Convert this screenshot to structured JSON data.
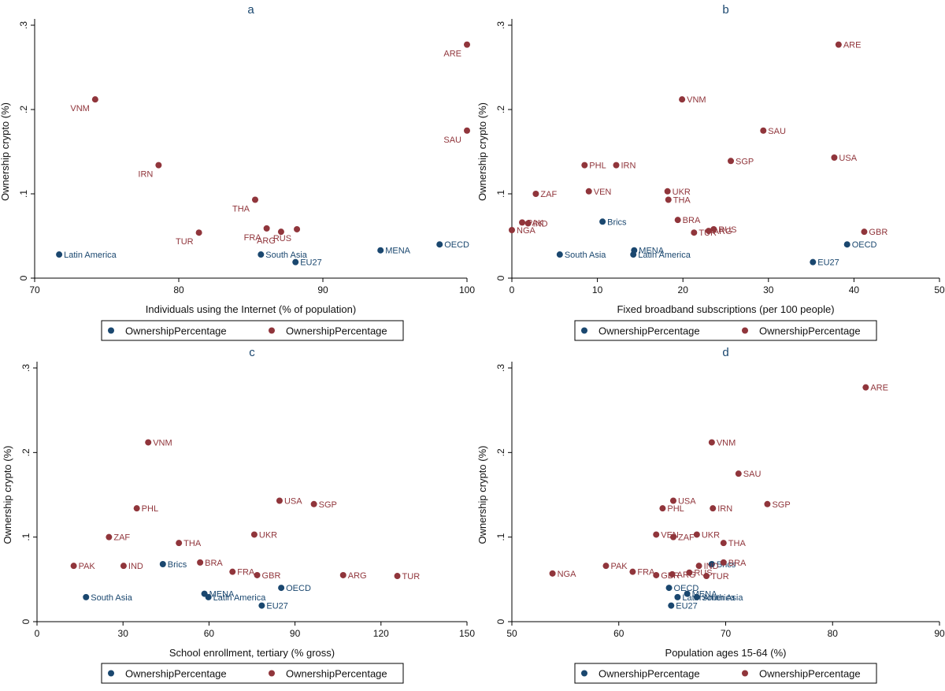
{
  "colors": {
    "navy": "#1a476f",
    "maroon": "#90353b",
    "frame": "#000000",
    "legend_border": "#000000"
  },
  "chart_data": [
    {
      "type": "scatter",
      "title": "a",
      "xlabel": "Individuals using the Internet (% of population)",
      "ylabel": "Ownership crypto (%)",
      "xlim": [
        70,
        100
      ],
      "ylim": [
        0,
        0.3
      ],
      "xticks": [
        70,
        80,
        90,
        100
      ],
      "xtick_labels": [
        "70",
        "80",
        "90",
        "100"
      ],
      "yticks": [
        0,
        0.1,
        0.2,
        0.3
      ],
      "ytick_labels": [
        "0",
        ".1",
        ".2",
        ".3"
      ],
      "legend": [
        "OwnershipPercentage",
        "OwnershipPercentage"
      ],
      "series": [
        {
          "name": "OwnershipPercentage",
          "color": "navy",
          "points": [
            {
              "label": "Latin America",
              "x": 71.7,
              "y": 0.028,
              "pos": "right"
            },
            {
              "label": "South Asia",
              "x": 85.7,
              "y": 0.028,
              "pos": "right"
            },
            {
              "label": "EU27",
              "x": 88.1,
              "y": 0.019,
              "pos": "right"
            },
            {
              "label": "MENA",
              "x": 94.0,
              "y": 0.033,
              "pos": "right"
            },
            {
              "label": "OECD",
              "x": 98.1,
              "y": 0.04,
              "pos": "right"
            }
          ]
        },
        {
          "name": "OwnershipPercentage",
          "color": "maroon",
          "points": [
            {
              "label": "VNM",
              "x": 74.2,
              "y": 0.212,
              "pos": "below-left"
            },
            {
              "label": "IRN",
              "x": 78.6,
              "y": 0.134,
              "pos": "below-left"
            },
            {
              "label": "TUR",
              "x": 81.4,
              "y": 0.054,
              "pos": "below-left"
            },
            {
              "label": "THA",
              "x": 85.3,
              "y": 0.093,
              "pos": "below-left"
            },
            {
              "label": "FRA",
              "x": 86.1,
              "y": 0.059,
              "pos": "below-left"
            },
            {
              "label": "ARG",
              "x": 87.1,
              "y": 0.055,
              "pos": "below-left"
            },
            {
              "label": "RUS",
              "x": 88.2,
              "y": 0.058,
              "pos": "below-left"
            },
            {
              "label": "ARE",
              "x": 100.0,
              "y": 0.277,
              "pos": "below-left"
            },
            {
              "label": "SAU",
              "x": 100.0,
              "y": 0.175,
              "pos": "below-left"
            }
          ]
        }
      ]
    },
    {
      "type": "scatter",
      "title": "b",
      "xlabel": "Fixed broadband subscriptions (per 100 people)",
      "ylabel": "Ownership crypto (%)",
      "xlim": [
        0,
        50
      ],
      "ylim": [
        0,
        0.3
      ],
      "xticks": [
        0,
        10,
        20,
        30,
        40,
        50
      ],
      "xtick_labels": [
        "0",
        "10",
        "20",
        "30",
        "40",
        "50"
      ],
      "yticks": [
        0,
        0.1,
        0.2,
        0.3
      ],
      "ytick_labels": [
        "0",
        ".1",
        ".2",
        ".3"
      ],
      "legend": [
        "OwnershipPercentage",
        "OwnershipPercentage"
      ],
      "series": [
        {
          "name": "OwnershipPercentage",
          "color": "navy",
          "points": [
            {
              "label": "South Asia",
              "x": 5.6,
              "y": 0.028,
              "pos": "right"
            },
            {
              "label": "Brics",
              "x": 10.6,
              "y": 0.067,
              "pos": "right"
            },
            {
              "label": "MENA",
              "x": 14.3,
              "y": 0.033,
              "pos": "right"
            },
            {
              "label": "Latin America",
              "x": 14.2,
              "y": 0.028,
              "pos": "right"
            },
            {
              "label": "EU27",
              "x": 35.2,
              "y": 0.019,
              "pos": "right"
            },
            {
              "label": "OECD",
              "x": 39.2,
              "y": 0.04,
              "pos": "right"
            }
          ]
        },
        {
          "name": "OwnershipPercentage",
          "color": "maroon",
          "points": [
            {
              "label": "NGA",
              "x": 0.0,
              "y": 0.057,
              "pos": "right"
            },
            {
              "label": "PAK",
              "x": 1.2,
              "y": 0.066,
              "pos": "right"
            },
            {
              "label": "IND",
              "x": 1.9,
              "y": 0.065,
              "pos": "right"
            },
            {
              "label": "ZAF",
              "x": 2.8,
              "y": 0.1,
              "pos": "right"
            },
            {
              "label": "PHL",
              "x": 8.5,
              "y": 0.134,
              "pos": "right"
            },
            {
              "label": "VEN",
              "x": 9.0,
              "y": 0.103,
              "pos": "right"
            },
            {
              "label": "IRN",
              "x": 12.2,
              "y": 0.134,
              "pos": "right"
            },
            {
              "label": "UKR",
              "x": 18.2,
              "y": 0.103,
              "pos": "right"
            },
            {
              "label": "THA",
              "x": 18.3,
              "y": 0.093,
              "pos": "right"
            },
            {
              "label": "BRA",
              "x": 19.4,
              "y": 0.069,
              "pos": "right"
            },
            {
              "label": "VNM",
              "x": 19.9,
              "y": 0.212,
              "pos": "right"
            },
            {
              "label": "TUR",
              "x": 21.3,
              "y": 0.054,
              "pos": "right"
            },
            {
              "label": "ARG",
              "x": 23.0,
              "y": 0.056,
              "pos": "right"
            },
            {
              "label": "RUS",
              "x": 23.6,
              "y": 0.058,
              "pos": "right"
            },
            {
              "label": "SGP",
              "x": 25.6,
              "y": 0.139,
              "pos": "right"
            },
            {
              "label": "SAU",
              "x": 29.4,
              "y": 0.175,
              "pos": "right"
            },
            {
              "label": "USA",
              "x": 37.7,
              "y": 0.143,
              "pos": "right"
            },
            {
              "label": "ARE",
              "x": 38.2,
              "y": 0.277,
              "pos": "right"
            },
            {
              "label": "GBR",
              "x": 41.2,
              "y": 0.055,
              "pos": "right"
            }
          ]
        }
      ]
    },
    {
      "type": "scatter",
      "title": "c",
      "xlabel": "School enrollment, tertiary (% gross)",
      "ylabel": "Ownership crypto (%)",
      "xlim": [
        0,
        150
      ],
      "ylim": [
        0,
        0.3
      ],
      "xticks": [
        0,
        30,
        60,
        90,
        120,
        150
      ],
      "xtick_labels": [
        "0",
        "30",
        "60",
        "90",
        "120",
        "150"
      ],
      "yticks": [
        0,
        0.1,
        0.2,
        0.3
      ],
      "ytick_labels": [
        "0",
        ".1",
        ".2",
        ".3"
      ],
      "legend": [
        "OwnershipPercentage",
        "OwnershipPercentage"
      ],
      "series": [
        {
          "name": "OwnershipPercentage",
          "color": "navy",
          "points": [
            {
              "label": "South Asia",
              "x": 17.1,
              "y": 0.029,
              "pos": "right"
            },
            {
              "label": "Brics",
              "x": 43.9,
              "y": 0.068,
              "pos": "right"
            },
            {
              "label": "MENA",
              "x": 58.4,
              "y": 0.033,
              "pos": "right"
            },
            {
              "label": "Latin America",
              "x": 59.8,
              "y": 0.029,
              "pos": "right"
            },
            {
              "label": "OECD",
              "x": 85.2,
              "y": 0.04,
              "pos": "right"
            },
            {
              "label": "EU27",
              "x": 78.4,
              "y": 0.019,
              "pos": "right"
            }
          ]
        },
        {
          "name": "OwnershipPercentage",
          "color": "maroon",
          "points": [
            {
              "label": "PAK",
              "x": 12.8,
              "y": 0.066,
              "pos": "right"
            },
            {
              "label": "ZAF",
              "x": 25.1,
              "y": 0.1,
              "pos": "right"
            },
            {
              "label": "IND",
              "x": 30.2,
              "y": 0.066,
              "pos": "right"
            },
            {
              "label": "PHL",
              "x": 34.8,
              "y": 0.134,
              "pos": "right"
            },
            {
              "label": "VNM",
              "x": 38.8,
              "y": 0.212,
              "pos": "right"
            },
            {
              "label": "THA",
              "x": 49.5,
              "y": 0.093,
              "pos": "right"
            },
            {
              "label": "BRA",
              "x": 56.9,
              "y": 0.07,
              "pos": "right"
            },
            {
              "label": "FRA",
              "x": 68.2,
              "y": 0.059,
              "pos": "right"
            },
            {
              "label": "UKR",
              "x": 75.8,
              "y": 0.103,
              "pos": "right"
            },
            {
              "label": "GBR",
              "x": 76.8,
              "y": 0.055,
              "pos": "right"
            },
            {
              "label": "USA",
              "x": 84.6,
              "y": 0.143,
              "pos": "right"
            },
            {
              "label": "SGP",
              "x": 96.6,
              "y": 0.139,
              "pos": "right"
            },
            {
              "label": "ARG",
              "x": 106.8,
              "y": 0.055,
              "pos": "right"
            },
            {
              "label": "TUR",
              "x": 125.7,
              "y": 0.054,
              "pos": "right"
            }
          ]
        }
      ]
    },
    {
      "type": "scatter",
      "title": "d",
      "xlabel": "Population ages 15-64 (%)",
      "ylabel": "Ownership crypto (%)",
      "xlim": [
        50,
        90
      ],
      "ylim": [
        0,
        0.3
      ],
      "xticks": [
        50,
        60,
        70,
        80,
        90
      ],
      "xtick_labels": [
        "50",
        "60",
        "70",
        "80",
        "90"
      ],
      "yticks": [
        0,
        0.1,
        0.2,
        0.3
      ],
      "ytick_labels": [
        "0",
        ".1",
        ".2",
        ".3"
      ],
      "legend": [
        "OwnershipPercentage",
        "OwnershipPercentage"
      ],
      "series": [
        {
          "name": "OwnershipPercentage",
          "color": "navy",
          "points": [
            {
              "label": "OECD",
              "x": 64.7,
              "y": 0.04,
              "pos": "right"
            },
            {
              "label": "Latin America",
              "x": 65.5,
              "y": 0.029,
              "pos": "right"
            },
            {
              "label": "MENA",
              "x": 66.4,
              "y": 0.033,
              "pos": "right"
            },
            {
              "label": "EU27",
              "x": 64.9,
              "y": 0.019,
              "pos": "right"
            },
            {
              "label": "South Asia",
              "x": 67.3,
              "y": 0.029,
              "pos": "right"
            },
            {
              "label": "Brics",
              "x": 68.7,
              "y": 0.068,
              "pos": "right"
            }
          ]
        },
        {
          "name": "OwnershipPercentage",
          "color": "maroon",
          "points": [
            {
              "label": "NGA",
              "x": 53.8,
              "y": 0.057,
              "pos": "right"
            },
            {
              "label": "PAK",
              "x": 58.8,
              "y": 0.066,
              "pos": "right"
            },
            {
              "label": "FRA",
              "x": 61.3,
              "y": 0.059,
              "pos": "right"
            },
            {
              "label": "GBR",
              "x": 63.5,
              "y": 0.055,
              "pos": "right"
            },
            {
              "label": "VEN",
              "x": 63.5,
              "y": 0.103,
              "pos": "right"
            },
            {
              "label": "PHL",
              "x": 64.1,
              "y": 0.134,
              "pos": "right"
            },
            {
              "label": "ZAF",
              "x": 65.1,
              "y": 0.1,
              "pos": "right"
            },
            {
              "label": "USA",
              "x": 65.1,
              "y": 0.143,
              "pos": "right"
            },
            {
              "label": "ARG",
              "x": 65.0,
              "y": 0.056,
              "pos": "right"
            },
            {
              "label": "RUS",
              "x": 66.6,
              "y": 0.058,
              "pos": "right"
            },
            {
              "label": "IND",
              "x": 67.5,
              "y": 0.066,
              "pos": "right"
            },
            {
              "label": "UKR",
              "x": 67.3,
              "y": 0.103,
              "pos": "right"
            },
            {
              "label": "TUR",
              "x": 68.2,
              "y": 0.054,
              "pos": "right"
            },
            {
              "label": "VNM",
              "x": 68.7,
              "y": 0.212,
              "pos": "right"
            },
            {
              "label": "IRN",
              "x": 68.8,
              "y": 0.134,
              "pos": "right"
            },
            {
              "label": "BRA",
              "x": 69.8,
              "y": 0.07,
              "pos": "right"
            },
            {
              "label": "THA",
              "x": 69.8,
              "y": 0.093,
              "pos": "right"
            },
            {
              "label": "SAU",
              "x": 71.2,
              "y": 0.175,
              "pos": "right"
            },
            {
              "label": "SGP",
              "x": 73.9,
              "y": 0.139,
              "pos": "right"
            },
            {
              "label": "ARE",
              "x": 83.1,
              "y": 0.277,
              "pos": "right"
            }
          ]
        }
      ]
    }
  ]
}
